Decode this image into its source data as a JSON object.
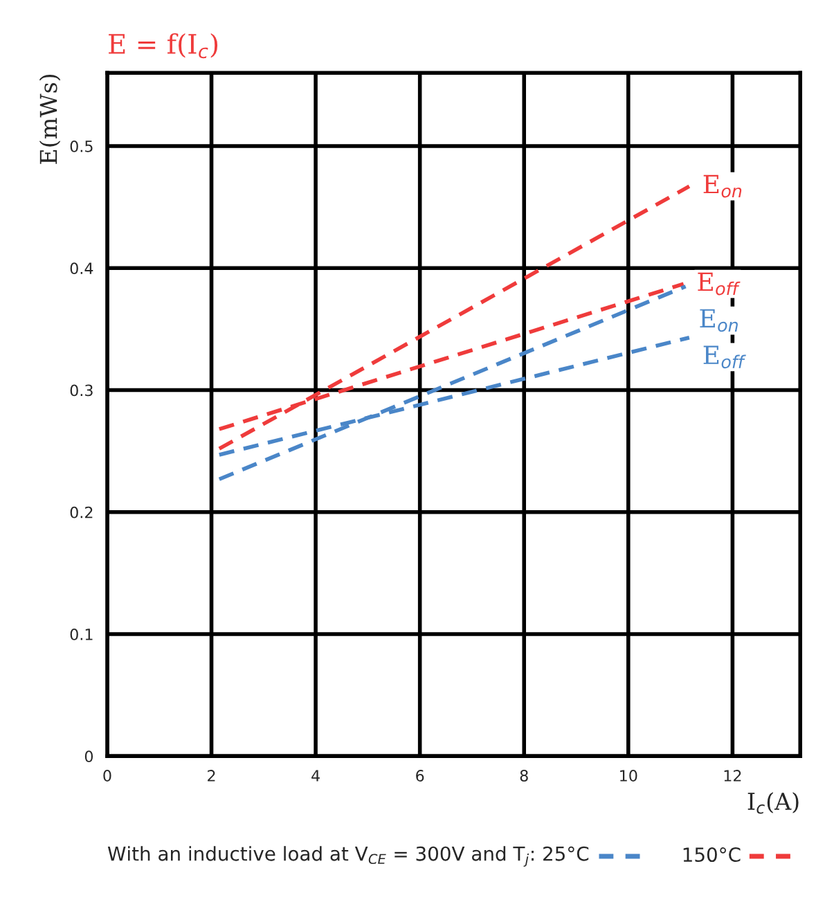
{
  "chart_data": {
    "type": "line",
    "title": "E = f(I$_{c}$)",
    "xlabel": "I$_{c}$(A)",
    "ylabel": "E(mWs)",
    "series": [
      {
        "name": "E$_{on}$",
        "color": "#ef3b3b",
        "x": [
          2.15,
          11.17
        ],
        "values": [
          0.252,
          0.467
        ]
      },
      {
        "name": "E$_{off}$",
        "color": "#ef3b3b",
        "x": [
          2.15,
          11.06
        ],
        "values": [
          0.268,
          0.387
        ]
      },
      {
        "name": "E$_{on}$",
        "color": "#4a86c8",
        "x": [
          2.15,
          11.1
        ],
        "values": [
          0.227,
          0.385
        ]
      },
      {
        "name": "E$_{off}$",
        "color": "#4a86c8",
        "x": [
          2.15,
          11.17
        ],
        "values": [
          0.247,
          0.343
        ]
      }
    ],
    "annotations": [
      "With an inductive load at V$_{CE}$ = 300V and T$_{j}$: 25°C",
      "150°C"
    ],
    "xlim": [
      0,
      13.3
    ],
    "ylim": [
      0,
      0.56
    ],
    "xticks": [
      0,
      2,
      4,
      6,
      8,
      10,
      12
    ],
    "yticks": [
      0,
      0.1,
      0.2,
      0.3,
      0.4,
      0.5
    ],
    "grid": true,
    "legend": false,
    "marker": "none",
    "line_style": "dashed"
  }
}
